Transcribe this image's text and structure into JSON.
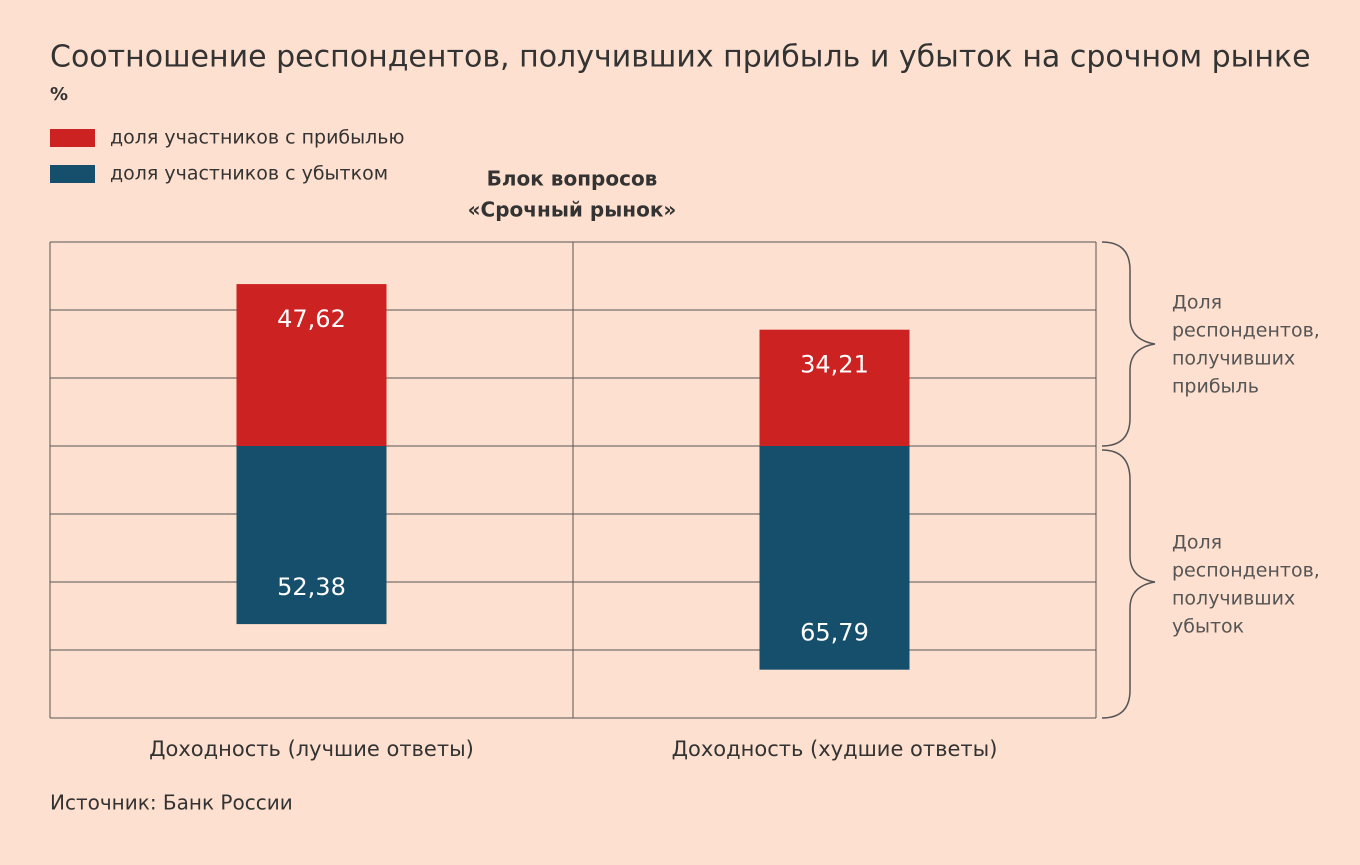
{
  "chart_data": {
    "type": "bar",
    "title": "Соотношение респондентов, получивших прибыль и убыток на срочном рынке",
    "units": "%",
    "subtitle": [
      "Блок вопросов",
      "«Срочный рынок»"
    ],
    "categories": [
      "Доходность (лучшие ответы)",
      "Доходность (худшие ответы)"
    ],
    "series": [
      {
        "name": "доля участников с прибылью",
        "color": "#cc2222",
        "direction": "up",
        "values": [
          47.62,
          34.21
        ],
        "value_labels": [
          "47,62",
          "34,21"
        ]
      },
      {
        "name": "доля участников с убытком",
        "color": "#154f6c",
        "direction": "down",
        "values": [
          52.38,
          65.79
        ],
        "value_labels": [
          "52,38",
          "65,79"
        ]
      }
    ],
    "ylim": [
      -80,
      60
    ],
    "yticks": [
      -80,
      -60,
      -40,
      -20,
      0,
      20,
      40,
      60
    ],
    "grid": true,
    "annotations": [
      {
        "lines": [
          "Доля",
          "респондентов,",
          "получивших",
          "прибыль"
        ]
      },
      {
        "lines": [
          "Доля",
          "респондентов,",
          "получивших",
          "убыток"
        ]
      }
    ],
    "source": "Источник: Банк России"
  }
}
